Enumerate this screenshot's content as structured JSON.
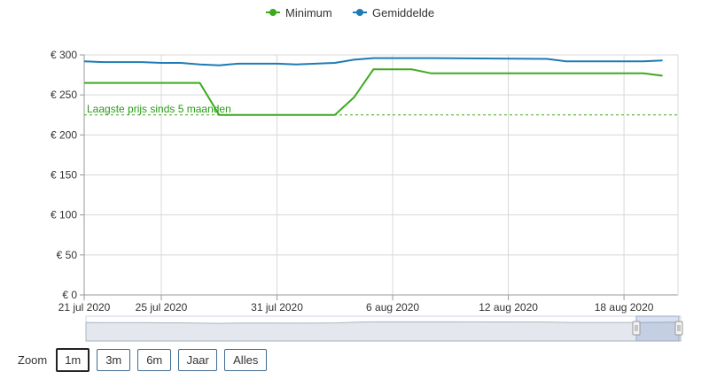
{
  "chart_data": {
    "type": "line",
    "legend": {
      "placement": "top-center"
    },
    "series": [
      {
        "name": "Minimum",
        "color": "#3daa1e",
        "points": [
          [
            "2020-07-21",
            265
          ],
          [
            "2020-07-27",
            265
          ],
          [
            "2020-07-28",
            225
          ],
          [
            "2020-08-03",
            225
          ],
          [
            "2020-08-04",
            247
          ],
          [
            "2020-08-05",
            282
          ],
          [
            "2020-08-07",
            282
          ],
          [
            "2020-08-08",
            277
          ],
          [
            "2020-08-19",
            277
          ],
          [
            "2020-08-20",
            274
          ]
        ]
      },
      {
        "name": "Gemiddelde",
        "color": "#1e7bb4",
        "points": [
          [
            "2020-07-21",
            292
          ],
          [
            "2020-07-22",
            291
          ],
          [
            "2020-07-24",
            291
          ],
          [
            "2020-07-25",
            290
          ],
          [
            "2020-07-26",
            290
          ],
          [
            "2020-07-27",
            288
          ],
          [
            "2020-07-28",
            287
          ],
          [
            "2020-07-29",
            289
          ],
          [
            "2020-07-31",
            289
          ],
          [
            "2020-08-01",
            288
          ],
          [
            "2020-08-02",
            289
          ],
          [
            "2020-08-03",
            290
          ],
          [
            "2020-08-04",
            294
          ],
          [
            "2020-08-05",
            296
          ],
          [
            "2020-08-08",
            296
          ],
          [
            "2020-08-14",
            295
          ],
          [
            "2020-08-15",
            292
          ],
          [
            "2020-08-19",
            292
          ],
          [
            "2020-08-20",
            293
          ]
        ]
      }
    ],
    "xlim": [
      "2020-07-21",
      "2020-08-20"
    ],
    "ylim": [
      0,
      300
    ],
    "y_ticks": [
      0,
      50,
      100,
      150,
      200,
      250,
      300
    ],
    "y_tick_labels": [
      "€ 0",
      "€ 50",
      "€ 100",
      "€ 150",
      "€ 200",
      "€ 250",
      "€ 300"
    ],
    "x_ticks": [
      "2020-07-21",
      "2020-07-25",
      "2020-07-31",
      "2020-08-06",
      "2020-08-12",
      "2020-08-18"
    ],
    "x_tick_labels": [
      "21 jul 2020",
      "25 jul 2020",
      "31 jul 2020",
      "6 aug 2020",
      "12 aug 2020",
      "18 aug 2020"
    ],
    "grid": true,
    "reference_line": {
      "value": 225,
      "label": "Laagste prijs sinds 5 maanden",
      "color": "#3daa1e",
      "style": "dashed"
    },
    "navigator": {
      "visible": true
    }
  },
  "zoom": {
    "label": "Zoom",
    "buttons": [
      {
        "label": "1m",
        "active": true
      },
      {
        "label": "3m",
        "active": false
      },
      {
        "label": "6m",
        "active": false
      },
      {
        "label": "Jaar",
        "active": false
      },
      {
        "label": "Alles",
        "active": false
      }
    ]
  }
}
